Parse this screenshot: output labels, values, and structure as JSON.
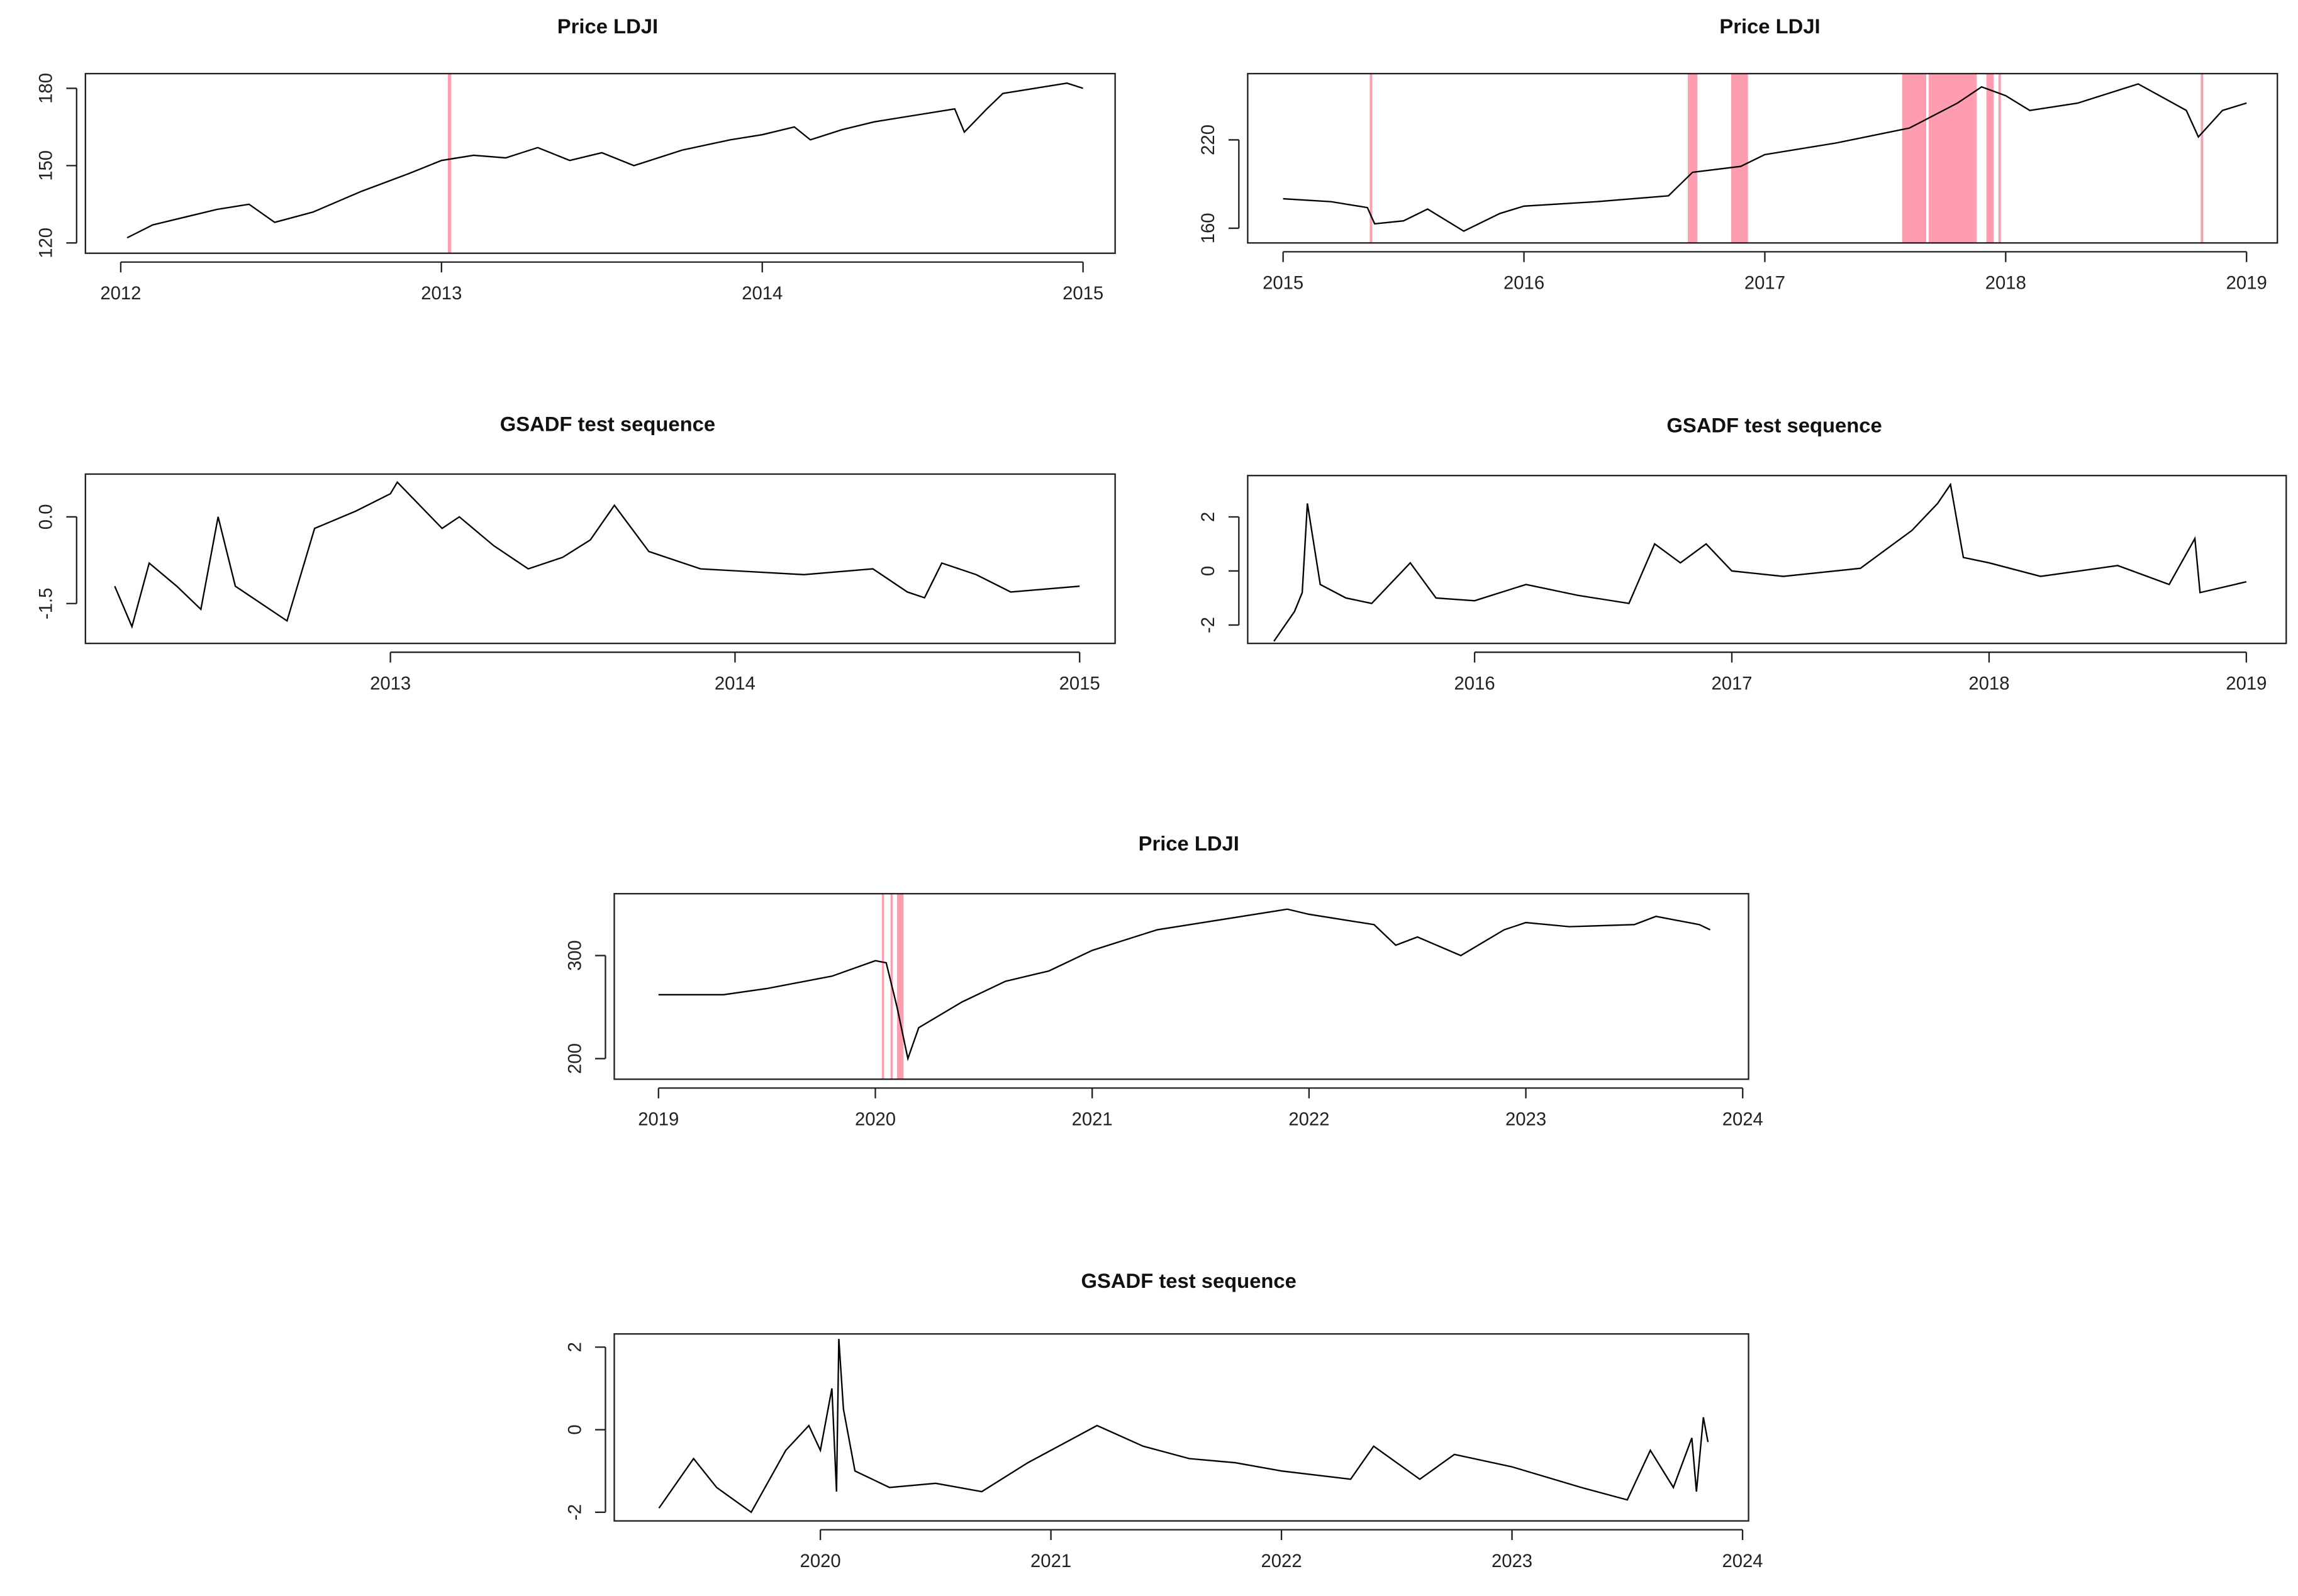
{
  "chart_data": [
    {
      "type": "line",
      "title": "Price LDJI",
      "color": "#000000",
      "highlight_color": "#ff9db0",
      "x": [
        2012.02,
        2012.1,
        2012.2,
        2012.3,
        2012.4,
        2012.48,
        2012.6,
        2012.75,
        2012.9,
        2013.0,
        2013.1,
        2013.2,
        2013.3,
        2013.4,
        2013.5,
        2013.6,
        2013.75,
        2013.9,
        2014.0,
        2014.1,
        2014.15,
        2014.25,
        2014.35,
        2014.5,
        2014.6,
        2014.63,
        2014.7,
        2014.75,
        2014.85,
        2014.95,
        2015.0
      ],
      "values": [
        122,
        127,
        130,
        133,
        135,
        128,
        132,
        140,
        147,
        152,
        154,
        153,
        157,
        152,
        155,
        150,
        156,
        160,
        162,
        165,
        160,
        164,
        167,
        170,
        172,
        163,
        172,
        178,
        180,
        182,
        180
      ],
      "highlights": [
        [
          2013.02,
          2013.03
        ]
      ],
      "xlim": [
        2011.89,
        2015.1
      ],
      "xticks": [
        2012,
        2013,
        2014,
        2015
      ],
      "ylim": [
        116,
        185.7
      ],
      "yticks": [
        120,
        150,
        180
      ]
    },
    {
      "type": "line",
      "title": "Price LDJI",
      "color": "#000000",
      "highlight_color": "#ff9db0",
      "x": [
        2015.0,
        2015.2,
        2015.35,
        2015.38,
        2015.5,
        2015.6,
        2015.75,
        2015.9,
        2016.0,
        2016.3,
        2016.6,
        2016.7,
        2016.9,
        2017.0,
        2017.3,
        2017.6,
        2017.8,
        2017.9,
        2018.0,
        2018.1,
        2018.3,
        2018.55,
        2018.75,
        2018.8,
        2018.9,
        2019.0
      ],
      "values": [
        180,
        178,
        174,
        163,
        165,
        173,
        158,
        170,
        175,
        178,
        182,
        198,
        202,
        210,
        218,
        228,
        245,
        256,
        250,
        240,
        245,
        258,
        240,
        222,
        240,
        245
      ],
      "highlights": [
        [
          2015.36,
          2015.37
        ],
        [
          2016.68,
          2016.72
        ],
        [
          2016.86,
          2016.93
        ],
        [
          2017.57,
          2017.67
        ],
        [
          2017.68,
          2017.88
        ],
        [
          2017.92,
          2017.95
        ],
        [
          2017.97,
          2017.98
        ],
        [
          2018.81,
          2018.82
        ]
      ],
      "xlim": [
        2014.853,
        2019.128
      ],
      "xticks": [
        2015,
        2016,
        2017,
        2018,
        2019
      ],
      "ylim": [
        150,
        265
      ],
      "yticks": [
        160,
        220
      ]
    },
    {
      "type": "line",
      "title": "GSADF test sequence",
      "color": "#000000",
      "x": [
        2012.2,
        2012.25,
        2012.3,
        2012.38,
        2012.45,
        2012.5,
        2012.55,
        2012.7,
        2012.78,
        2012.9,
        2013.0,
        2013.02,
        2013.15,
        2013.2,
        2013.3,
        2013.4,
        2013.5,
        2013.58,
        2013.65,
        2013.75,
        2013.9,
        2014.2,
        2014.4,
        2014.5,
        2014.55,
        2014.6,
        2014.7,
        2014.8,
        2015.0
      ],
      "values": [
        -1.2,
        -1.9,
        -0.8,
        -1.2,
        -1.6,
        0.0,
        -1.2,
        -1.8,
        -0.2,
        0.1,
        0.4,
        0.6,
        -0.2,
        0.0,
        -0.5,
        -0.9,
        -0.7,
        -0.4,
        0.2,
        -0.6,
        -0.9,
        -1.0,
        -0.9,
        -1.3,
        -1.4,
        -0.8,
        -1.0,
        -1.3,
        -1.2
      ],
      "xlim": [
        2012.115,
        2015.103
      ],
      "xticks": [
        2013,
        2014,
        2015
      ],
      "ylim": [
        -2.19,
        0.74
      ],
      "yticks": [
        -1.5,
        {
          "value": 0,
          "label": "0.0"
        }
      ]
    },
    {
      "type": "line",
      "title": "GSADF test sequence",
      "color": "#000000",
      "x": [
        2015.22,
        2015.3,
        2015.33,
        2015.35,
        2015.4,
        2015.5,
        2015.6,
        2015.75,
        2015.85,
        2016.0,
        2016.2,
        2016.4,
        2016.6,
        2016.7,
        2016.8,
        2016.9,
        2017.0,
        2017.2,
        2017.5,
        2017.6,
        2017.7,
        2017.8,
        2017.85,
        2017.9,
        2018.0,
        2018.2,
        2018.5,
        2018.7,
        2018.8,
        2018.82,
        2019.0
      ],
      "values": [
        -2.6,
        -1.5,
        -0.8,
        2.5,
        -0.5,
        -1.0,
        -1.2,
        0.3,
        -1.0,
        -1.1,
        -0.5,
        -0.9,
        -1.2,
        1.0,
        0.3,
        1.0,
        0.0,
        -0.2,
        0.1,
        0.8,
        1.5,
        2.5,
        3.2,
        0.5,
        0.3,
        -0.2,
        0.2,
        -0.5,
        1.2,
        -0.8,
        -0.4
      ],
      "xlim": [
        2015.118,
        2019.155
      ],
      "xticks": [
        2016,
        2017,
        2018,
        2019
      ],
      "ylim": [
        -2.68,
        3.53
      ],
      "yticks": [
        -2,
        0,
        2
      ]
    },
    {
      "type": "line",
      "title": "Price LDJI",
      "color": "#000000",
      "highlight_color": "#ff9db0",
      "x": [
        2019.0,
        2019.3,
        2019.5,
        2019.8,
        2020.0,
        2020.05,
        2020.1,
        2020.15,
        2020.2,
        2020.4,
        2020.6,
        2020.8,
        2021.0,
        2021.3,
        2021.6,
        2021.9,
        2022.0,
        2022.3,
        2022.4,
        2022.5,
        2022.7,
        2022.9,
        2023.0,
        2023.2,
        2023.5,
        2023.6,
        2023.8,
        2023.85
      ],
      "values": [
        262,
        262,
        268,
        280,
        295,
        293,
        250,
        200,
        230,
        255,
        275,
        285,
        305,
        325,
        335,
        345,
        340,
        330,
        310,
        318,
        300,
        325,
        332,
        328,
        330,
        338,
        330,
        325
      ],
      "highlights": [
        [
          2020.03,
          2020.04
        ],
        [
          2020.07,
          2020.08
        ],
        [
          2020.1,
          2020.13
        ]
      ],
      "xlim": [
        2018.796,
        2024.027
      ],
      "xticks": [
        2019,
        2020,
        2021,
        2022,
        2023,
        2024
      ],
      "ylim": [
        180,
        360
      ],
      "yticks": [
        200,
        300
      ]
    },
    {
      "type": "line",
      "title": "GSADF test sequence",
      "color": "#000000",
      "x": [
        2019.3,
        2019.45,
        2019.55,
        2019.7,
        2019.85,
        2019.95,
        2020.0,
        2020.05,
        2020.07,
        2020.08,
        2020.1,
        2020.15,
        2020.3,
        2020.5,
        2020.7,
        2020.9,
        2021.2,
        2021.4,
        2021.6,
        2021.8,
        2022.0,
        2022.3,
        2022.4,
        2022.6,
        2022.75,
        2023.0,
        2023.3,
        2023.5,
        2023.6,
        2023.7,
        2023.78,
        2023.8,
        2023.83,
        2023.85
      ],
      "values": [
        -1.9,
        -0.7,
        -1.4,
        -2.0,
        -0.5,
        0.1,
        -0.5,
        1.0,
        -1.5,
        2.2,
        0.5,
        -1.0,
        -1.4,
        -1.3,
        -1.5,
        -0.8,
        0.1,
        -0.4,
        -0.7,
        -0.8,
        -1.0,
        -1.2,
        -0.4,
        -1.2,
        -0.6,
        -0.9,
        -1.4,
        -1.7,
        -0.5,
        -1.4,
        -0.2,
        -1.5,
        0.3,
        -0.3
      ],
      "xlim": [
        2019.106,
        2024.026
      ],
      "xticks": [
        2020,
        2021,
        2022,
        2023,
        2024
      ],
      "ylim": [
        -2.21,
        2.32
      ],
      "yticks": [
        -2,
        0,
        2
      ]
    }
  ]
}
